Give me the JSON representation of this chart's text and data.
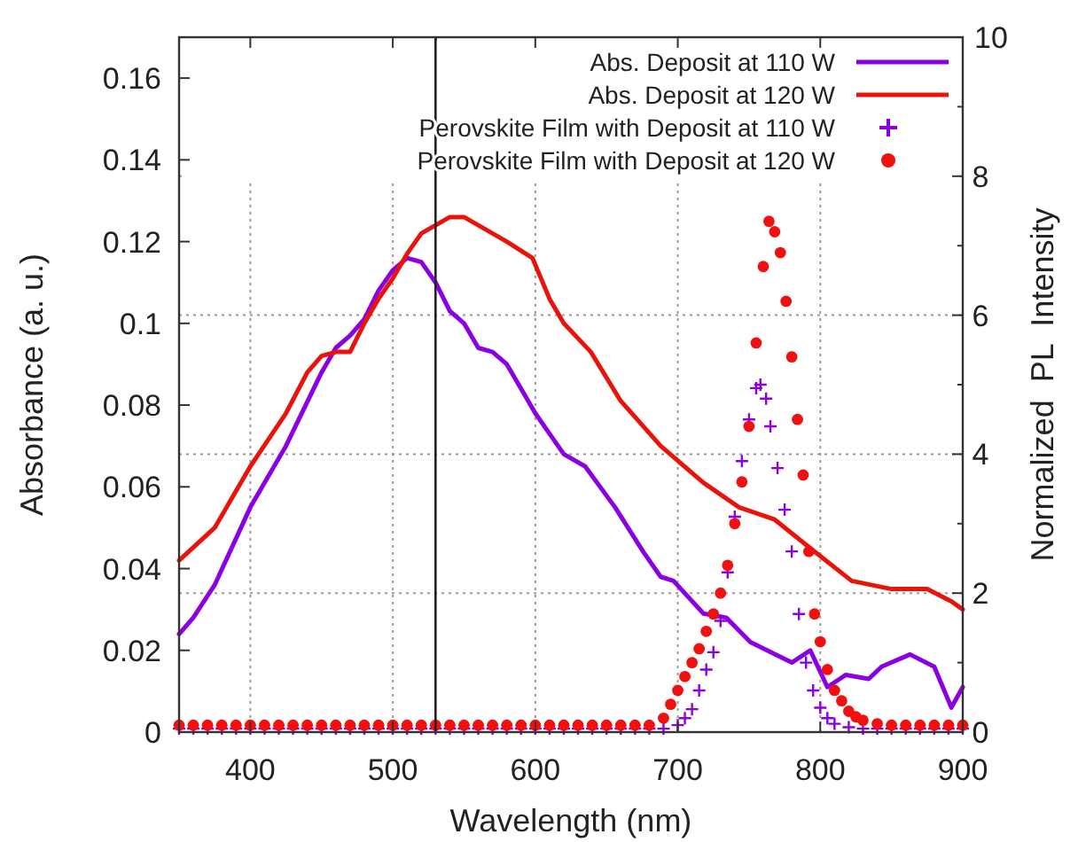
{
  "chart_data": {
    "type": "line",
    "xlabel": "Wavelength (nm)",
    "ylabel": "Absorbance (a. u.)",
    "y2label": "Normalized  PL  Intensity",
    "xlim": [
      350,
      900
    ],
    "xticks": [
      400,
      500,
      600,
      700,
      800,
      900
    ],
    "ylim": [
      0,
      0.17
    ],
    "yticks": [
      0,
      0.02,
      0.04,
      0.06,
      0.08,
      0.1,
      0.12,
      0.14,
      0.16
    ],
    "y2lim": [
      0,
      10
    ],
    "y2ticks": [
      0,
      {
        "value": 1,
        "label": null
      },
      2,
      {
        "value": 3,
        "label": null
      },
      4,
      {
        "value": 5,
        "label": null
      },
      6,
      {
        "value": 7,
        "label": null
      },
      8,
      {
        "value": 9,
        "label": null
      },
      10
    ],
    "grid": true,
    "legend": "top right",
    "ref_lines": [
      {
        "axis": "x",
        "value": 530,
        "color": "#222222"
      }
    ],
    "series": [
      {
        "name": "Abs. Deposit at 110 W",
        "color": "#8b00e0",
        "x": [
          350,
          360,
          375,
          400,
          425,
          450,
          460,
          470,
          480,
          490,
          500,
          510,
          520,
          530,
          540,
          550,
          560,
          570,
          580,
          590,
          600,
          610,
          620,
          635,
          656,
          676,
          688,
          697,
          718,
          734,
          751,
          780,
          793,
          805,
          818,
          834,
          843,
          863,
          880,
          892,
          900
        ],
        "values": [
          0.024,
          0.028,
          0.036,
          0.055,
          0.07,
          0.088,
          0.094,
          0.097,
          0.101,
          0.108,
          0.113,
          0.116,
          0.115,
          0.11,
          0.103,
          0.1,
          0.094,
          0.093,
          0.09,
          0.084,
          0.078,
          0.073,
          0.068,
          0.065,
          0.055,
          0.044,
          0.038,
          0.037,
          0.029,
          0.028,
          0.022,
          0.017,
          0.02,
          0.011,
          0.014,
          0.013,
          0.016,
          0.019,
          0.016,
          0.006,
          0.011
        ]
      },
      {
        "name": "Abs. Deposit at 120 W",
        "color": "#e8140c",
        "x": [
          350,
          375,
          400,
          425,
          440,
          450,
          460,
          470,
          480,
          490,
          500,
          510,
          520,
          530,
          540,
          550,
          560,
          570,
          580,
          598,
          610,
          620,
          639,
          660,
          688,
          718,
          743,
          768,
          793,
          822,
          850,
          875,
          892,
          900
        ],
        "values": [
          0.042,
          0.05,
          0.065,
          0.078,
          0.088,
          0.092,
          0.093,
          0.093,
          0.1,
          0.106,
          0.111,
          0.117,
          0.122,
          0.124,
          0.126,
          0.126,
          0.124,
          0.122,
          0.12,
          0.116,
          0.106,
          0.1,
          0.093,
          0.081,
          0.07,
          0.061,
          0.055,
          0.052,
          0.045,
          0.037,
          0.035,
          0.035,
          0.032,
          0.03
        ]
      },
      {
        "name": "Perovskite Film with Deposit at 110 W",
        "type": "scatter",
        "axis": "y2",
        "marker": "cross",
        "color": "#8b00e0",
        "x": [
          350,
          360,
          370,
          380,
          390,
          400,
          410,
          420,
          430,
          440,
          450,
          460,
          470,
          480,
          490,
          500,
          510,
          520,
          530,
          540,
          550,
          560,
          570,
          580,
          590,
          600,
          610,
          620,
          630,
          640,
          650,
          660,
          670,
          680,
          690,
          700,
          705,
          710,
          715,
          720,
          725,
          730,
          735,
          740,
          745,
          750,
          755,
          758,
          762,
          765,
          770,
          775,
          780,
          785,
          790,
          795,
          800,
          805,
          810,
          820,
          830,
          840,
          850,
          860,
          870,
          880,
          890,
          900
        ],
        "values": [
          0.05,
          0.05,
          0.05,
          0.05,
          0.05,
          0.05,
          0.05,
          0.05,
          0.05,
          0.05,
          0.05,
          0.05,
          0.05,
          0.05,
          0.05,
          0.05,
          0.05,
          0.05,
          0.05,
          0.05,
          0.05,
          0.05,
          0.05,
          0.05,
          0.05,
          0.05,
          0.05,
          0.05,
          0.05,
          0.05,
          0.05,
          0.05,
          0.05,
          0.05,
          0.05,
          0.1,
          0.2,
          0.33,
          0.6,
          0.9,
          1.15,
          1.6,
          2.3,
          3.1,
          3.9,
          4.5,
          4.95,
          5.0,
          4.8,
          4.4,
          3.8,
          3.2,
          2.6,
          1.7,
          1.0,
          0.6,
          0.35,
          0.2,
          0.12,
          0.07,
          0.05,
          0.05,
          0.05,
          0.05,
          0.05,
          0.05,
          0.05,
          0.05
        ]
      },
      {
        "name": "Perovskite Film with Deposit at 120 W",
        "type": "scatter",
        "axis": "y2",
        "marker": "circle",
        "color": "#f01010",
        "x": [
          350,
          360,
          370,
          380,
          390,
          400,
          410,
          420,
          430,
          440,
          450,
          460,
          470,
          480,
          490,
          500,
          510,
          520,
          530,
          540,
          550,
          560,
          570,
          580,
          590,
          600,
          610,
          620,
          630,
          640,
          650,
          660,
          670,
          680,
          690,
          695,
          700,
          705,
          710,
          715,
          720,
          725,
          730,
          735,
          740,
          745,
          750,
          755,
          760,
          764,
          768,
          772,
          776,
          780,
          784,
          788,
          792,
          796,
          800,
          805,
          810,
          815,
          820,
          825,
          830,
          840,
          850,
          860,
          870,
          880,
          890,
          900
        ],
        "values": [
          0.1,
          0.1,
          0.1,
          0.1,
          0.1,
          0.1,
          0.1,
          0.1,
          0.1,
          0.1,
          0.1,
          0.1,
          0.1,
          0.1,
          0.1,
          0.1,
          0.1,
          0.1,
          0.1,
          0.1,
          0.1,
          0.1,
          0.1,
          0.1,
          0.1,
          0.1,
          0.1,
          0.1,
          0.1,
          0.1,
          0.1,
          0.1,
          0.1,
          0.1,
          0.2,
          0.4,
          0.6,
          0.8,
          1.0,
          1.2,
          1.45,
          1.7,
          2.0,
          2.4,
          3.0,
          3.6,
          4.4,
          5.6,
          6.7,
          7.35,
          7.2,
          6.9,
          6.2,
          5.4,
          4.5,
          3.7,
          2.6,
          1.7,
          1.3,
          0.9,
          0.6,
          0.45,
          0.3,
          0.22,
          0.17,
          0.12,
          0.1,
          0.1,
          0.1,
          0.1,
          0.1,
          0.1
        ]
      }
    ]
  }
}
